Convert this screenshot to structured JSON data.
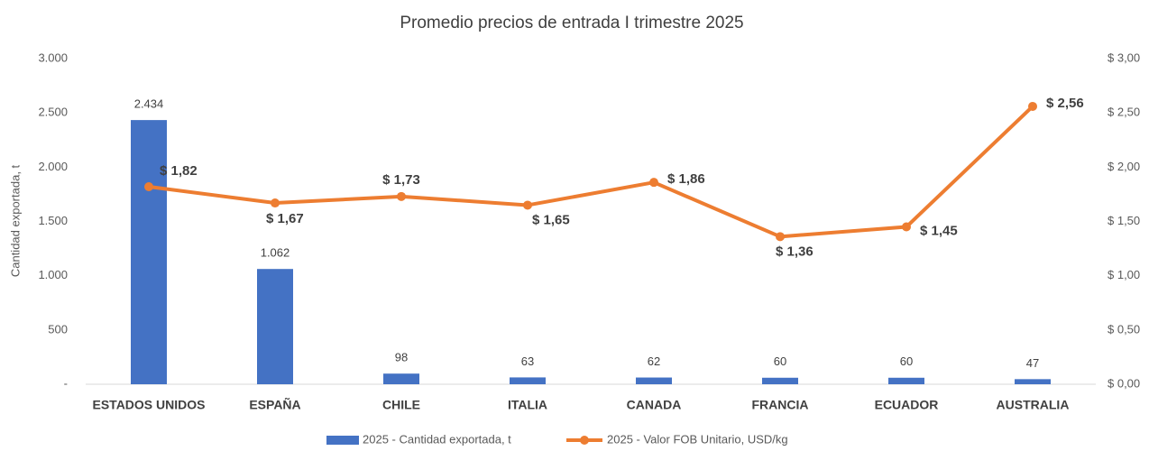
{
  "chart_data": {
    "type": "bar_line",
    "title": "Promedio precios de entrada I trimestre 2025",
    "y_label": "Cantidad exportada, t",
    "categories": [
      "ESTADOS UNIDOS",
      "ESPAÑA",
      "CHILE",
      "ITALIA",
      "CANADA",
      "FRANCIA",
      "ECUADOR",
      "AUSTRALIA"
    ],
    "series": [
      {
        "name": "2025 - Cantidad exportada, t",
        "type": "bar",
        "color": "#4472c4",
        "values": [
          2434,
          1062,
          98,
          63,
          62,
          60,
          60,
          47
        ],
        "value_labels": [
          "2.434",
          "1.062",
          "98",
          "63",
          "62",
          "60",
          "60",
          "47"
        ]
      },
      {
        "name": "2025 - Valor FOB Unitario, USD/kg",
        "type": "line",
        "axis": "y2",
        "color": "#ed7d31",
        "values": [
          1.82,
          1.67,
          1.73,
          1.65,
          1.86,
          1.36,
          1.45,
          2.56
        ],
        "value_labels": [
          "$ 1,82",
          "$ 1,67",
          "$ 1,73",
          "$ 1,65",
          "$ 1,86",
          "$ 1,36",
          "$ 1,45",
          "$ 2,56"
        ]
      }
    ],
    "ylim": [
      0,
      3000
    ],
    "yticks": [
      {
        "value": 0,
        "label": "-"
      },
      500,
      {
        "value": 1000,
        "label": "1.000"
      },
      {
        "value": 1500,
        "label": "1.500"
      },
      {
        "value": 2000,
        "label": "2.000"
      },
      {
        "value": 2500,
        "label": "2.500"
      },
      {
        "value": 3000,
        "label": "3.000"
      }
    ],
    "y2lim": [
      0,
      3
    ],
    "y2ticks": [
      {
        "value": 0,
        "label": "$ 0,00"
      },
      {
        "value": 0.5,
        "label": "$ 0,50"
      },
      {
        "value": 1,
        "label": "$ 1,00"
      },
      {
        "value": 1.5,
        "label": "$ 1,50"
      },
      {
        "value": 2,
        "label": "$ 2,00"
      },
      {
        "value": 2.5,
        "label": "$ 2,50"
      },
      {
        "value": 3,
        "label": "$ 3,00"
      }
    ],
    "legend": "bottom",
    "grid": false
  }
}
